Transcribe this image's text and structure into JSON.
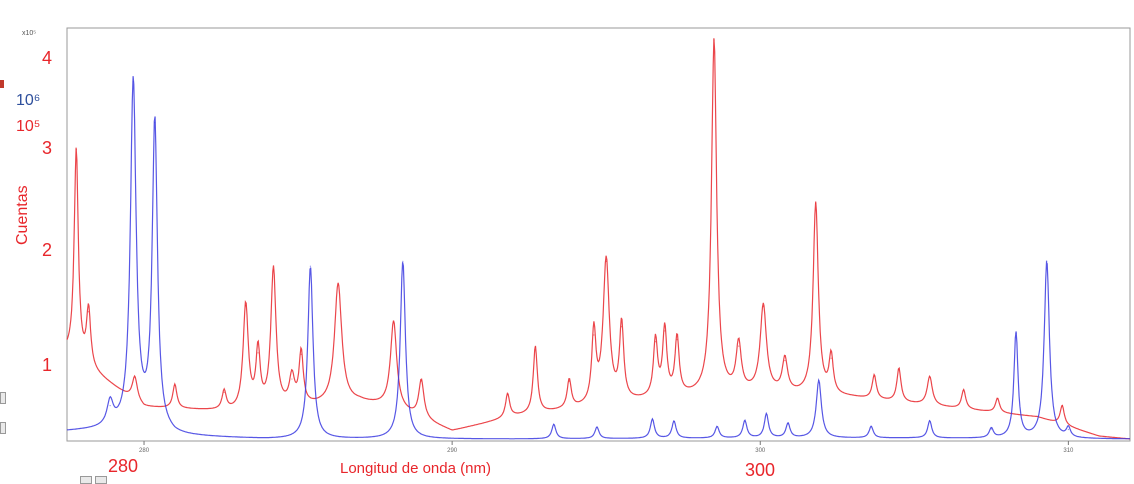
{
  "chart_data": {
    "type": "line",
    "title": "",
    "xlabel": "Longitud de onda (nm)",
    "ylabel": "Cuentas",
    "xlim": [
      277.5,
      312
    ],
    "ylim": [
      0,
      4.3
    ],
    "scale_note": "x10⁵",
    "overlay_scale_labels": [
      "10⁶",
      "10⁵"
    ],
    "x_ticks_small": [
      "280",
      "290",
      "300",
      "310"
    ],
    "x_ticks_large": [
      "280",
      "300"
    ],
    "y_ticks": [
      "1",
      "2",
      "3",
      "4"
    ],
    "grid": false,
    "legend": "none",
    "series": [
      {
        "color": "#e8262b",
        "baseline": [
          [
            277.5,
            0.9
          ],
          [
            280,
            0.35
          ],
          [
            283,
            0.3
          ],
          [
            287,
            0.4
          ],
          [
            288,
            0.35
          ],
          [
            290,
            0.1
          ],
          [
            292,
            0.25
          ],
          [
            297,
            0.45
          ],
          [
            300,
            0.5
          ],
          [
            303,
            0.45
          ],
          [
            306,
            0.35
          ],
          [
            309,
            0.25
          ],
          [
            311,
            0.05
          ],
          [
            312,
            0.02
          ]
        ],
        "peaks": [
          {
            "x": 277.8,
            "y": 2.2,
            "w": 0.08
          },
          {
            "x": 278.2,
            "y": 0.6,
            "w": 0.08
          },
          {
            "x": 279.7,
            "y": 0.25,
            "w": 0.1
          },
          {
            "x": 281.0,
            "y": 0.25,
            "w": 0.08
          },
          {
            "x": 282.6,
            "y": 0.2,
            "w": 0.08
          },
          {
            "x": 283.3,
            "y": 1.1,
            "w": 0.1
          },
          {
            "x": 283.7,
            "y": 0.6,
            "w": 0.08
          },
          {
            "x": 284.2,
            "y": 1.45,
            "w": 0.1
          },
          {
            "x": 284.8,
            "y": 0.3,
            "w": 0.1
          },
          {
            "x": 285.1,
            "y": 0.55,
            "w": 0.08
          },
          {
            "x": 286.3,
            "y": 1.25,
            "w": 0.14
          },
          {
            "x": 288.1,
            "y": 0.9,
            "w": 0.12
          },
          {
            "x": 289.0,
            "y": 0.4,
            "w": 0.1
          },
          {
            "x": 291.8,
            "y": 0.25,
            "w": 0.08
          },
          {
            "x": 292.7,
            "y": 0.7,
            "w": 0.08
          },
          {
            "x": 293.8,
            "y": 0.3,
            "w": 0.08
          },
          {
            "x": 294.6,
            "y": 0.75,
            "w": 0.08
          },
          {
            "x": 295.0,
            "y": 1.5,
            "w": 0.12
          },
          {
            "x": 295.5,
            "y": 0.8,
            "w": 0.08
          },
          {
            "x": 296.6,
            "y": 0.6,
            "w": 0.08
          },
          {
            "x": 296.9,
            "y": 0.7,
            "w": 0.08
          },
          {
            "x": 297.3,
            "y": 0.6,
            "w": 0.08
          },
          {
            "x": 298.5,
            "y": 3.7,
            "w": 0.1
          },
          {
            "x": 299.3,
            "y": 0.5,
            "w": 0.1
          },
          {
            "x": 300.1,
            "y": 0.9,
            "w": 0.12
          },
          {
            "x": 300.8,
            "y": 0.35,
            "w": 0.1
          },
          {
            "x": 301.8,
            "y": 2.0,
            "w": 0.1
          },
          {
            "x": 302.3,
            "y": 0.4,
            "w": 0.08
          },
          {
            "x": 303.7,
            "y": 0.25,
            "w": 0.08
          },
          {
            "x": 304.5,
            "y": 0.35,
            "w": 0.08
          },
          {
            "x": 305.5,
            "y": 0.3,
            "w": 0.1
          },
          {
            "x": 306.6,
            "y": 0.2,
            "w": 0.08
          },
          {
            "x": 307.7,
            "y": 0.15,
            "w": 0.08
          },
          {
            "x": 309.8,
            "y": 0.2,
            "w": 0.08
          }
        ]
      },
      {
        "color": "#3a3ae0",
        "baseline": [
          [
            277.5,
            0.1
          ],
          [
            279,
            0.12
          ],
          [
            280,
            0.15
          ],
          [
            281,
            0.05
          ],
          [
            284,
            0.02
          ],
          [
            290,
            0.02
          ],
          [
            292,
            0.02
          ],
          [
            300,
            0.03
          ],
          [
            305,
            0.03
          ],
          [
            310,
            0.02
          ],
          [
            312,
            0.02
          ]
        ],
        "peaks": [
          {
            "x": 278.9,
            "y": 0.25,
            "w": 0.12
          },
          {
            "x": 279.65,
            "y": 3.6,
            "w": 0.11
          },
          {
            "x": 280.35,
            "y": 3.2,
            "w": 0.1
          },
          {
            "x": 285.4,
            "y": 1.8,
            "w": 0.1
          },
          {
            "x": 288.4,
            "y": 1.85,
            "w": 0.1
          },
          {
            "x": 293.3,
            "y": 0.15,
            "w": 0.08
          },
          {
            "x": 294.7,
            "y": 0.12,
            "w": 0.08
          },
          {
            "x": 296.5,
            "y": 0.2,
            "w": 0.08
          },
          {
            "x": 297.2,
            "y": 0.18,
            "w": 0.08
          },
          {
            "x": 298.6,
            "y": 0.12,
            "w": 0.08
          },
          {
            "x": 299.5,
            "y": 0.18,
            "w": 0.08
          },
          {
            "x": 300.2,
            "y": 0.25,
            "w": 0.08
          },
          {
            "x": 300.9,
            "y": 0.15,
            "w": 0.08
          },
          {
            "x": 301.9,
            "y": 0.6,
            "w": 0.1
          },
          {
            "x": 303.6,
            "y": 0.12,
            "w": 0.08
          },
          {
            "x": 305.5,
            "y": 0.18,
            "w": 0.08
          },
          {
            "x": 307.5,
            "y": 0.1,
            "w": 0.08
          },
          {
            "x": 308.3,
            "y": 1.1,
            "w": 0.08
          },
          {
            "x": 309.3,
            "y": 1.85,
            "w": 0.1
          },
          {
            "x": 310.0,
            "y": 0.1,
            "w": 0.08
          }
        ]
      }
    ]
  }
}
